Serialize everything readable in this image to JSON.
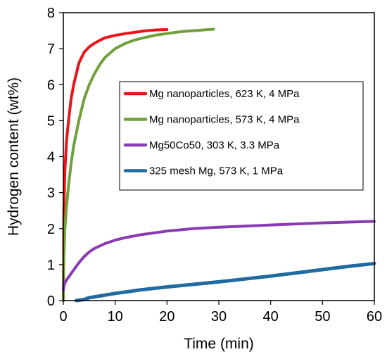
{
  "chart_data": {
    "type": "line",
    "xlabel": "Time (min)",
    "ylabel": "Hydrogen content (wt%)",
    "xlim": [
      0,
      60
    ],
    "ylim": [
      0,
      8
    ],
    "xticks": [
      0,
      10,
      20,
      30,
      40,
      50,
      60
    ],
    "yticks": [
      0,
      1,
      2,
      3,
      4,
      5,
      6,
      7,
      8
    ],
    "grid": false,
    "legend_position": "right",
    "series": [
      {
        "name": "Mg nanoparticles, 623 K, 4 MPa",
        "color": "#e8141a",
        "x": [
          0,
          0.1,
          0.3,
          0.6,
          1,
          1.5,
          2,
          3,
          4,
          5,
          6,
          7,
          8,
          10,
          12,
          14,
          16,
          18,
          20
        ],
        "y": [
          0,
          2.5,
          3.6,
          4.4,
          5.0,
          5.6,
          6.0,
          6.6,
          6.9,
          7.05,
          7.15,
          7.23,
          7.3,
          7.37,
          7.42,
          7.46,
          7.5,
          7.52,
          7.53
        ]
      },
      {
        "name": "Mg nanoparticles, 573 K, 4 MPa",
        "color": "#70a03a",
        "x": [
          0,
          0.1,
          0.3,
          0.6,
          1,
          1.5,
          2,
          3,
          4,
          5,
          6,
          7,
          8,
          10,
          12,
          14,
          16,
          18,
          20,
          22,
          24,
          26,
          28,
          29
        ],
        "y": [
          0,
          1.2,
          2.0,
          2.6,
          3.2,
          3.8,
          4.3,
          5.0,
          5.6,
          6.0,
          6.3,
          6.55,
          6.75,
          7.0,
          7.15,
          7.25,
          7.32,
          7.38,
          7.42,
          7.46,
          7.49,
          7.51,
          7.53,
          7.54
        ]
      },
      {
        "name": "Mg50Co50, 303 K, 3.3 MPa",
        "color": "#8a3ab2",
        "x": [
          0,
          0.2,
          0.5,
          1,
          2,
          3,
          4,
          5,
          6,
          8,
          10,
          12,
          15,
          20,
          25,
          30,
          35,
          40,
          45,
          50,
          55,
          60
        ],
        "y": [
          0.3,
          0.45,
          0.55,
          0.65,
          0.85,
          1.05,
          1.22,
          1.35,
          1.45,
          1.58,
          1.68,
          1.75,
          1.83,
          1.93,
          2.0,
          2.04,
          2.07,
          2.1,
          2.13,
          2.16,
          2.18,
          2.2
        ]
      },
      {
        "name": "325 mesh Mg, 573 K, 1 MPa",
        "color": "#1f6aa0",
        "x": [
          2.5,
          4,
          5,
          8,
          10,
          15,
          20,
          25,
          30,
          35,
          40,
          45,
          50,
          55,
          60
        ],
        "y": [
          0,
          0.03,
          0.08,
          0.15,
          0.2,
          0.3,
          0.38,
          0.45,
          0.52,
          0.6,
          0.68,
          0.77,
          0.86,
          0.95,
          1.03
        ]
      }
    ]
  }
}
